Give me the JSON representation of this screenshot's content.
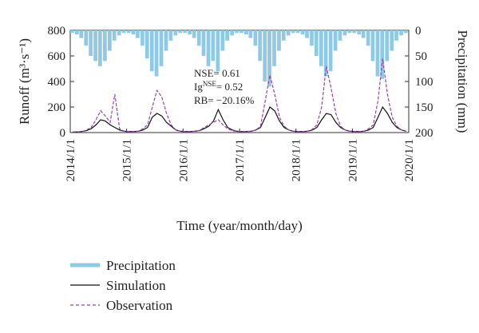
{
  "chart_data": {
    "type": "line",
    "x": [
      "2014/1/1",
      "2014/2/1",
      "2014/3/1",
      "2014/4/1",
      "2014/5/1",
      "2014/6/1",
      "2014/7/1",
      "2014/8/1",
      "2014/9/1",
      "2014/10/1",
      "2014/11/1",
      "2014/12/1",
      "2015/1/1",
      "2015/2/1",
      "2015/3/1",
      "2015/4/1",
      "2015/5/1",
      "2015/6/1",
      "2015/7/1",
      "2015/8/1",
      "2015/9/1",
      "2015/10/1",
      "2015/11/1",
      "2015/12/1",
      "2016/1/1",
      "2016/2/1",
      "2016/3/1",
      "2016/4/1",
      "2016/5/1",
      "2016/6/1",
      "2016/7/1",
      "2016/8/1",
      "2016/9/1",
      "2016/10/1",
      "2016/11/1",
      "2016/12/1",
      "2017/1/1",
      "2017/2/1",
      "2017/3/1",
      "2017/4/1",
      "2017/5/1",
      "2017/6/1",
      "2017/7/1",
      "2017/8/1",
      "2017/9/1",
      "2017/10/1",
      "2017/11/1",
      "2017/12/1",
      "2018/1/1",
      "2018/2/1",
      "2018/3/1",
      "2018/4/1",
      "2018/5/1",
      "2018/6/1",
      "2018/7/1",
      "2018/8/1",
      "2018/9/1",
      "2018/10/1",
      "2018/11/1",
      "2018/12/1",
      "2019/1/1",
      "2019/2/1",
      "2019/3/1",
      "2019/4/1",
      "2019/5/1",
      "2019/6/1",
      "2019/7/1",
      "2019/8/1",
      "2019/9/1",
      "2019/10/1",
      "2019/11/1",
      "2019/12/1"
    ],
    "series": [
      {
        "name": "Precipitation",
        "color": "#8ecae6",
        "kind": "bar",
        "axis": "y2",
        "values": [
          5,
          8,
          15,
          30,
          50,
          60,
          70,
          60,
          40,
          20,
          10,
          5,
          5,
          8,
          15,
          30,
          55,
          80,
          90,
          70,
          40,
          20,
          10,
          5,
          5,
          8,
          15,
          30,
          50,
          70,
          60,
          80,
          40,
          20,
          10,
          5,
          5,
          8,
          15,
          30,
          60,
          100,
          110,
          70,
          40,
          20,
          10,
          5,
          5,
          8,
          15,
          30,
          50,
          70,
          90,
          80,
          40,
          20,
          10,
          5,
          5,
          8,
          15,
          30,
          60,
          90,
          95,
          60,
          40,
          20,
          10,
          5
        ]
      },
      {
        "name": "Simulation",
        "color": "#111111",
        "kind": "line",
        "values": [
          5,
          5,
          8,
          15,
          30,
          60,
          100,
          90,
          60,
          40,
          20,
          10,
          8,
          8,
          10,
          20,
          40,
          120,
          150,
          130,
          80,
          50,
          20,
          10,
          8,
          8,
          10,
          15,
          30,
          50,
          90,
          180,
          100,
          40,
          20,
          10,
          8,
          8,
          10,
          20,
          40,
          120,
          200,
          170,
          90,
          40,
          20,
          10,
          8,
          8,
          10,
          20,
          40,
          100,
          150,
          140,
          80,
          40,
          20,
          10,
          8,
          8,
          10,
          20,
          40,
          120,
          200,
          150,
          80,
          40,
          20,
          10
        ]
      },
      {
        "name": "Observation",
        "color": "#9b3fb5",
        "kind": "dashed",
        "values": [
          5,
          5,
          8,
          20,
          40,
          100,
          170,
          130,
          80,
          300,
          30,
          10,
          8,
          8,
          10,
          30,
          60,
          200,
          330,
          280,
          150,
          60,
          20,
          10,
          8,
          8,
          10,
          15,
          40,
          60,
          80,
          100,
          60,
          30,
          15,
          8,
          8,
          8,
          10,
          20,
          50,
          250,
          450,
          300,
          120,
          50,
          20,
          10,
          8,
          8,
          10,
          25,
          60,
          200,
          520,
          350,
          150,
          50,
          20,
          10,
          8,
          8,
          10,
          30,
          60,
          250,
          580,
          300,
          120,
          50,
          20,
          10
        ]
      }
    ],
    "xlim": [
      "2014/1/1",
      "2020/1/1"
    ],
    "xticks": [
      "2014/1/1",
      "2015/1/1",
      "2016/1/1",
      "2017/1/1",
      "2018/1/1",
      "2019/1/1",
      "2020/1/1"
    ],
    "ylim": [
      0,
      800
    ],
    "yticks": [
      0,
      200,
      400,
      600,
      800
    ],
    "y2lim": [
      0,
      200
    ],
    "y2ticks": [
      0,
      50,
      100,
      150,
      200
    ],
    "y2_inverted": true,
    "xlabel": "Time (year/month/day)",
    "ylabel": "Runoff (m³·s⁻¹)",
    "y2label": "Precipitation (mm)",
    "annotations": [
      "NSE= 0.61",
      [
        "Ig",
        "NSE",
        "= 0.52"
      ],
      "RB= −20.16%"
    ]
  }
}
